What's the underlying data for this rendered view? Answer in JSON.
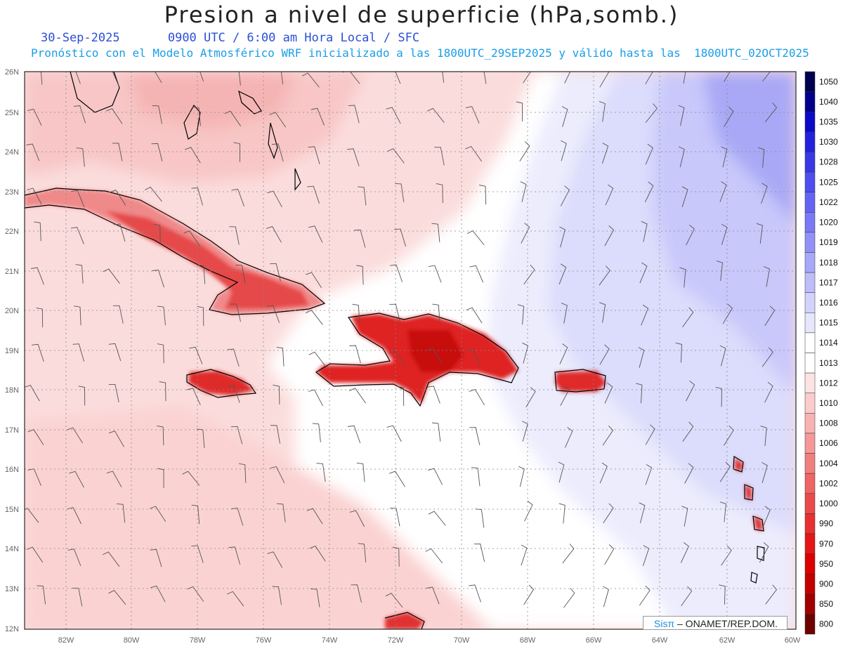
{
  "title": "Presion a nivel de superficie (hPa,somb.)",
  "subtitle": {
    "date": "30-Sep-2025",
    "time": "0900 UTC / 6:00 am Hora Local / SFC"
  },
  "description": "Pronóstico con el Modelo Atmosférico WRF inicializado a las 1800UTC_29SEP2025 y válido hasta las  1800UTC_02OCT2025",
  "axes": {
    "lat_labels": [
      "26N",
      "25N",
      "24N",
      "23N",
      "22N",
      "21N",
      "20N",
      "19N",
      "18N",
      "17N",
      "16N",
      "15N",
      "14N",
      "13N",
      "12N"
    ],
    "lon_labels": [
      "82W",
      "80W",
      "78W",
      "76W",
      "74W",
      "72W",
      "70W",
      "68W",
      "66W",
      "64W",
      "62W",
      "60W"
    ]
  },
  "colorbar": {
    "labels": [
      "1050",
      "1040",
      "1035",
      "1030",
      "1028",
      "1025",
      "1022",
      "1020",
      "1019",
      "1018",
      "1017",
      "1016",
      "1015",
      "1014",
      "1013",
      "1012",
      "1010",
      "1008",
      "1006",
      "1004",
      "1002",
      "1000",
      "990",
      "970",
      "950",
      "900",
      "850",
      "800"
    ],
    "colors": [
      "#000050",
      "#00008c",
      "#0a0ac8",
      "#2222dc",
      "#3838e6",
      "#4e4ef0",
      "#6464f4",
      "#7a7af6",
      "#9191f8",
      "#a8a8fa",
      "#bdbdfb",
      "#d2d2fc",
      "#e6e6fd",
      "#ffffff",
      "#ffffff",
      "#fde4e4",
      "#fbcccc",
      "#f8b2b2",
      "#f59898",
      "#f27e7e",
      "#ef6464",
      "#eb4a4a",
      "#e83030",
      "#e51616",
      "#dc0000",
      "#c30000",
      "#a00000",
      "#6e0000"
    ]
  },
  "credit": {
    "brand": "Sisπ",
    "org": "– ONAMET/REP.DOM."
  }
}
